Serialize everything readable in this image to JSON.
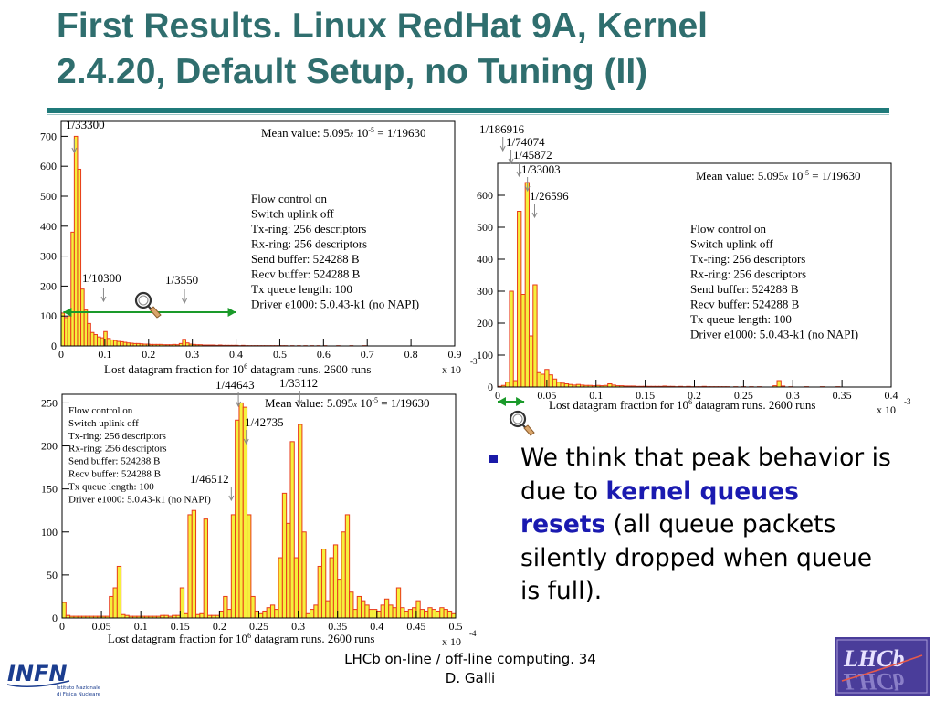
{
  "slide": {
    "title_line1": "First Results. Linux RedHat 9A, Kernel",
    "title_line2": "2.4.20, Default Setup, no Tuning (II)",
    "bullet": {
      "part1": "We think that peak behavior is due to ",
      "highlight": "kernel queues resets",
      "part2": " (all queue packets silently dropped when queue is full)."
    },
    "footer_line1": "LHCb on-line / off-line computing. 34",
    "footer_line2": "D. Galli",
    "infn_logo": {
      "wordmark": "INFN",
      "line1": "Istituto Nazionale",
      "line2": "di Fisica Nucleare"
    },
    "lhcb_logo": {
      "text": "LHCb"
    },
    "colors": {
      "title": "#2f6e6e",
      "rule": "#1f7a7a",
      "bar_fill": "#f5f03c",
      "bar_edge": "#e83a1a",
      "arrow": "#1a9a2a",
      "highlight": "#1a1ab0"
    }
  },
  "chart_data": [
    {
      "type": "bar",
      "xlim": [
        0,
        0.9
      ],
      "ylim": [
        0,
        750
      ],
      "xticks": [
        0,
        0.1,
        0.2,
        0.3,
        0.4,
        0.5,
        0.6,
        0.7,
        0.8,
        0.9
      ],
      "xtick_labels": [
        "0",
        "0.1",
        "0.2",
        "0.3",
        "0.4",
        "0.5",
        "0.6",
        "0.7",
        "0.8",
        "0.9"
      ],
      "yticks": [
        0,
        100,
        200,
        300,
        400,
        500,
        600,
        700
      ],
      "ytick_labels": [
        "0",
        "100",
        "200",
        "300",
        "400",
        "500",
        "600",
        "700"
      ],
      "bin_width": 0.0075,
      "x_exponent_base": "x 10",
      "x_exponent_power": "-3",
      "xlabel_pre": "Lost datagram fraction for 10",
      "xlabel_sup": "6",
      "xlabel_post": " datagram runs. 2600 runs",
      "mean_pre": "Mean value: 5.095",
      "mean_x": "x",
      "mean_mid": " 10",
      "mean_sup": "-5",
      "mean_post": " = 1/19630",
      "legend": [
        "Flow control on",
        "Switch uplink off",
        "Tx-ring: 256 descriptors",
        "Rx-ring: 256 descriptors",
        "Send buffer: 524288 B",
        "Recv buffer: 524288 B",
        "Tx queue length: 100",
        "Driver e1000: 5.0.43-k1 (no NAPI)"
      ],
      "annotations": [
        {
          "text": "1/33300",
          "x": 0.03
        },
        {
          "text": "1/10300",
          "x": 0.097
        },
        {
          "text": "1/3550",
          "x": 0.282
        }
      ],
      "arrow_range": [
        0.005,
        0.4
      ],
      "bins": [
        [
          0.0,
          110
        ],
        [
          0.0075,
          95
        ],
        [
          0.015,
          100
        ],
        [
          0.0225,
          380
        ],
        [
          0.03,
          700
        ],
        [
          0.0375,
          590
        ],
        [
          0.045,
          190
        ],
        [
          0.0525,
          120
        ],
        [
          0.06,
          75
        ],
        [
          0.0675,
          45
        ],
        [
          0.075,
          38
        ],
        [
          0.0825,
          30
        ],
        [
          0.09,
          27
        ],
        [
          0.0975,
          48
        ],
        [
          0.105,
          25
        ],
        [
          0.1125,
          20
        ],
        [
          0.12,
          18
        ],
        [
          0.1275,
          15
        ],
        [
          0.135,
          14
        ],
        [
          0.1425,
          12
        ],
        [
          0.15,
          10
        ],
        [
          0.1575,
          9
        ],
        [
          0.165,
          8
        ],
        [
          0.1725,
          8
        ],
        [
          0.18,
          7
        ],
        [
          0.1875,
          6
        ],
        [
          0.195,
          6
        ],
        [
          0.2025,
          5
        ],
        [
          0.21,
          5
        ],
        [
          0.2175,
          5
        ],
        [
          0.225,
          5
        ],
        [
          0.2325,
          4
        ],
        [
          0.24,
          4
        ],
        [
          0.2475,
          4
        ],
        [
          0.255,
          5
        ],
        [
          0.2625,
          4
        ],
        [
          0.27,
          8
        ],
        [
          0.2775,
          22
        ],
        [
          0.285,
          10
        ],
        [
          0.2925,
          6
        ],
        [
          0.3,
          5
        ],
        [
          0.3075,
          4
        ],
        [
          0.315,
          4
        ],
        [
          0.3225,
          3
        ],
        [
          0.33,
          3
        ],
        [
          0.3375,
          3
        ],
        [
          0.345,
          3
        ],
        [
          0.3525,
          2
        ],
        [
          0.36,
          3
        ],
        [
          0.3675,
          2
        ],
        [
          0.375,
          2
        ],
        [
          0.3825,
          2
        ],
        [
          0.39,
          2
        ],
        [
          0.3975,
          2
        ],
        [
          0.405,
          1
        ],
        [
          0.4125,
          2
        ],
        [
          0.42,
          1
        ],
        [
          0.4275,
          1
        ],
        [
          0.435,
          1
        ],
        [
          0.4425,
          1
        ],
        [
          0.45,
          1
        ],
        [
          0.4575,
          1
        ],
        [
          0.465,
          1
        ],
        [
          0.4725,
          1
        ],
        [
          0.48,
          1
        ],
        [
          0.4875,
          1
        ],
        [
          0.495,
          1
        ],
        [
          0.5025,
          1
        ],
        [
          0.51,
          1
        ],
        [
          0.525,
          1
        ],
        [
          0.54,
          1
        ],
        [
          0.555,
          1
        ],
        [
          0.57,
          1
        ],
        [
          0.585,
          1
        ],
        [
          0.6,
          1
        ],
        [
          0.63,
          1
        ],
        [
          0.66,
          1
        ],
        [
          0.69,
          1
        ]
      ]
    },
    {
      "type": "bar",
      "xlim": [
        0,
        0.4
      ],
      "ylim": [
        0,
        700
      ],
      "xticks": [
        0,
        0.05,
        0.1,
        0.15,
        0.2,
        0.25,
        0.3,
        0.35,
        0.4
      ],
      "xtick_labels": [
        "0",
        "0.05",
        "0.1",
        "0.15",
        "0.2",
        "0.25",
        "0.3",
        "0.35",
        "0.4"
      ],
      "yticks": [
        0,
        100,
        200,
        300,
        400,
        500,
        600
      ],
      "ytick_labels": [
        "0",
        "100",
        "200",
        "300",
        "400",
        "500",
        "600"
      ],
      "bin_width": 0.004,
      "x_exponent_base": "x 10",
      "x_exponent_power": "-3",
      "xlabel_pre": "Lost datagram fraction for 10",
      "xlabel_sup": "6",
      "xlabel_post": " datagram runs. 2600 runs",
      "mean_pre": "Mean value: 5.095",
      "mean_x": "x",
      "mean_mid": " 10",
      "mean_sup": "-5",
      "mean_post": " = 1/19630",
      "legend": [
        "Flow control on",
        "Switch uplink off",
        "Tx-ring: 256 descriptors",
        "Rx-ring: 256 descriptors",
        "Send buffer: 524288 B",
        "Recv buffer: 524288 B",
        "Tx queue length: 100",
        "Driver e1000: 5.0.43-k1 (no NAPI)"
      ],
      "annotations": [
        {
          "text": "1/186916",
          "x": 0.0053
        },
        {
          "text": "1/74074",
          "x": 0.0135
        },
        {
          "text": "1/45872",
          "x": 0.0218
        },
        {
          "text": "1/33003",
          "x": 0.0303
        },
        {
          "text": "1/26596",
          "x": 0.0376
        }
      ],
      "arrow_range": [
        0.0,
        0.027
      ],
      "bins": [
        [
          0.0,
          2
        ],
        [
          0.004,
          5
        ],
        [
          0.008,
          15
        ],
        [
          0.012,
          300
        ],
        [
          0.016,
          20
        ],
        [
          0.02,
          550
        ],
        [
          0.024,
          290
        ],
        [
          0.028,
          640
        ],
        [
          0.032,
          160
        ],
        [
          0.036,
          320
        ],
        [
          0.04,
          45
        ],
        [
          0.044,
          40
        ],
        [
          0.048,
          55
        ],
        [
          0.052,
          38
        ],
        [
          0.056,
          25
        ],
        [
          0.06,
          15
        ],
        [
          0.064,
          12
        ],
        [
          0.068,
          10
        ],
        [
          0.072,
          8
        ],
        [
          0.076,
          6
        ],
        [
          0.08,
          8
        ],
        [
          0.084,
          6
        ],
        [
          0.088,
          5
        ],
        [
          0.092,
          5
        ],
        [
          0.096,
          4
        ],
        [
          0.1,
          5
        ],
        [
          0.104,
          4
        ],
        [
          0.108,
          5
        ],
        [
          0.112,
          10
        ],
        [
          0.116,
          6
        ],
        [
          0.12,
          4
        ],
        [
          0.124,
          4
        ],
        [
          0.128,
          3
        ],
        [
          0.132,
          3
        ],
        [
          0.136,
          3
        ],
        [
          0.14,
          2
        ],
        [
          0.144,
          2
        ],
        [
          0.148,
          2
        ],
        [
          0.152,
          2
        ],
        [
          0.156,
          2
        ],
        [
          0.16,
          2
        ],
        [
          0.164,
          2
        ],
        [
          0.168,
          3
        ],
        [
          0.172,
          2
        ],
        [
          0.176,
          2
        ],
        [
          0.18,
          1
        ],
        [
          0.184,
          2
        ],
        [
          0.188,
          1
        ],
        [
          0.192,
          2
        ],
        [
          0.196,
          1
        ],
        [
          0.2,
          1
        ],
        [
          0.204,
          1
        ],
        [
          0.208,
          2
        ],
        [
          0.212,
          1
        ],
        [
          0.216,
          1
        ],
        [
          0.22,
          1
        ],
        [
          0.224,
          1
        ],
        [
          0.228,
          1
        ],
        [
          0.232,
          1
        ],
        [
          0.24,
          1
        ],
        [
          0.248,
          1
        ],
        [
          0.256,
          1
        ],
        [
          0.264,
          1
        ],
        [
          0.28,
          4
        ],
        [
          0.284,
          20
        ],
        [
          0.288,
          3
        ],
        [
          0.296,
          1
        ],
        [
          0.312,
          1
        ],
        [
          0.328,
          1
        ],
        [
          0.344,
          1
        ]
      ]
    },
    {
      "type": "bar",
      "xlim": [
        0,
        0.5
      ],
      "ylim": [
        0,
        260
      ],
      "xticks": [
        0,
        0.05,
        0.1,
        0.15,
        0.2,
        0.25,
        0.3,
        0.35,
        0.4,
        0.45,
        0.5
      ],
      "xtick_labels": [
        "0",
        "0.05",
        "0.1",
        "0.15",
        "0.2",
        "0.25",
        "0.3",
        "0.35",
        "0.4",
        "0.45",
        "0.5"
      ],
      "yticks": [
        0,
        50,
        100,
        150,
        200,
        250
      ],
      "ytick_labels": [
        "0",
        "50",
        "100",
        "150",
        "200",
        "250"
      ],
      "bin_width": 0.005,
      "x_exponent_base": "x 10",
      "x_exponent_power": "-4",
      "xlabel_pre": "Lost datagram fraction for 10",
      "xlabel_sup": "6",
      "xlabel_post": " datagram runs. 2600 runs",
      "mean_pre": "Mean value: 5.095",
      "mean_x": "x",
      "mean_mid": " 10",
      "mean_sup": "-5",
      "mean_post": " = 1/19630",
      "legend": [
        "Flow control on",
        "Switch uplink off",
        "Tx-ring: 256 descriptors",
        "Rx-ring: 256 descriptors",
        "Send buffer: 524288 B",
        "Recv buffer: 524288 B",
        "Tx queue length: 100",
        "Driver e1000: 5.0.43-k1 (no NAPI)"
      ],
      "annotations": [
        {
          "text": "1/44643",
          "x": 0.224
        },
        {
          "text": "1/33112",
          "x": 0.302
        },
        {
          "text": "1/42735",
          "x": 0.234
        },
        {
          "text": "1/46512",
          "x": 0.215
        }
      ],
      "bins": [
        [
          0.0,
          18
        ],
        [
          0.005,
          3
        ],
        [
          0.01,
          2
        ],
        [
          0.015,
          2
        ],
        [
          0.02,
          2
        ],
        [
          0.025,
          2
        ],
        [
          0.03,
          2
        ],
        [
          0.035,
          2
        ],
        [
          0.04,
          2
        ],
        [
          0.045,
          2
        ],
        [
          0.05,
          2
        ],
        [
          0.055,
          2
        ],
        [
          0.06,
          25
        ],
        [
          0.065,
          35
        ],
        [
          0.07,
          60
        ],
        [
          0.075,
          4
        ],
        [
          0.08,
          3
        ],
        [
          0.085,
          2
        ],
        [
          0.09,
          2
        ],
        [
          0.095,
          2
        ],
        [
          0.1,
          2
        ],
        [
          0.105,
          2
        ],
        [
          0.11,
          2
        ],
        [
          0.115,
          2
        ],
        [
          0.12,
          2
        ],
        [
          0.125,
          3
        ],
        [
          0.13,
          3
        ],
        [
          0.135,
          2
        ],
        [
          0.14,
          3
        ],
        [
          0.145,
          3
        ],
        [
          0.15,
          35
        ],
        [
          0.155,
          5
        ],
        [
          0.16,
          120
        ],
        [
          0.165,
          125
        ],
        [
          0.17,
          4
        ],
        [
          0.175,
          5
        ],
        [
          0.18,
          115
        ],
        [
          0.185,
          3
        ],
        [
          0.19,
          3
        ],
        [
          0.195,
          3
        ],
        [
          0.2,
          8
        ],
        [
          0.205,
          25
        ],
        [
          0.21,
          10
        ],
        [
          0.215,
          120
        ],
        [
          0.22,
          230
        ],
        [
          0.225,
          250
        ],
        [
          0.23,
          245
        ],
        [
          0.235,
          120
        ],
        [
          0.24,
          25
        ],
        [
          0.245,
          8
        ],
        [
          0.25,
          5
        ],
        [
          0.255,
          8
        ],
        [
          0.26,
          12
        ],
        [
          0.265,
          15
        ],
        [
          0.27,
          10
        ],
        [
          0.275,
          70
        ],
        [
          0.28,
          145
        ],
        [
          0.285,
          110
        ],
        [
          0.29,
          205
        ],
        [
          0.295,
          70
        ],
        [
          0.3,
          225
        ],
        [
          0.305,
          100
        ],
        [
          0.31,
          5
        ],
        [
          0.315,
          10
        ],
        [
          0.32,
          15
        ],
        [
          0.325,
          60
        ],
        [
          0.33,
          80
        ],
        [
          0.335,
          20
        ],
        [
          0.34,
          70
        ],
        [
          0.345,
          85
        ],
        [
          0.35,
          45
        ],
        [
          0.355,
          100
        ],
        [
          0.36,
          120
        ],
        [
          0.365,
          30
        ],
        [
          0.37,
          10
        ],
        [
          0.375,
          25
        ],
        [
          0.38,
          20
        ],
        [
          0.385,
          15
        ],
        [
          0.39,
          10
        ],
        [
          0.395,
          10
        ],
        [
          0.4,
          8
        ],
        [
          0.405,
          15
        ],
        [
          0.41,
          22
        ],
        [
          0.415,
          15
        ],
        [
          0.42,
          12
        ],
        [
          0.425,
          35
        ],
        [
          0.43,
          12
        ],
        [
          0.435,
          8
        ],
        [
          0.44,
          10
        ],
        [
          0.445,
          12
        ],
        [
          0.45,
          20
        ],
        [
          0.455,
          10
        ],
        [
          0.46,
          8
        ],
        [
          0.465,
          12
        ],
        [
          0.47,
          10
        ],
        [
          0.475,
          8
        ],
        [
          0.48,
          12
        ],
        [
          0.485,
          10
        ],
        [
          0.49,
          8
        ],
        [
          0.495,
          5
        ]
      ]
    }
  ]
}
